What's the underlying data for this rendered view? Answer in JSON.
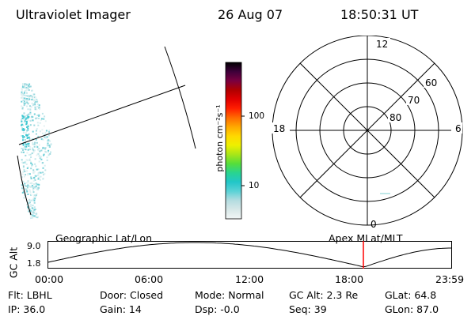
{
  "header": {
    "instrument": "Ultraviolet Imager",
    "date": "26 Aug 07",
    "time": "18:50:31 UT"
  },
  "colorbar": {
    "unit_label": "photon cm⁻²s⁻¹",
    "ticks": [
      "100",
      "10"
    ],
    "stops": [
      "#f2f6f6",
      "#d8e8e8",
      "#b4dce0",
      "#5ad2d6",
      "#22c6c8",
      "#28d490",
      "#56de3a",
      "#a8e618",
      "#eef000",
      "#ffd800",
      "#ffa800",
      "#ff6a00",
      "#ff1e00",
      "#e00000",
      "#b00000",
      "#7a0040",
      "#3e003a",
      "#000000"
    ]
  },
  "polar": {
    "clock_labels": {
      "top": "12",
      "left": "18",
      "right": "6",
      "bottom": "0"
    },
    "lat_labels": [
      "60",
      "70",
      "80"
    ]
  },
  "timeline": {
    "left_label": "Geographic Lat/Lon",
    "right_label": "Apex MLat/MLT",
    "axis_label": "GC Alt",
    "y_ticks": [
      "9.0",
      "1.8"
    ],
    "x_ticks": [
      "00:00",
      "06:00",
      "12:00",
      "18:00",
      "23:59"
    ]
  },
  "status": {
    "flt": "Flt: LBHL",
    "ip": "IP: 36.0",
    "door": "Door: Closed",
    "gain": "Gain: 14",
    "mode": "Mode: Normal",
    "dsp": "Dsp: -0.0",
    "gc_alt": "GC Alt: 2.3 Re",
    "seq": "Seq: 39",
    "glat": "GLat: 64.8",
    "glon": "GLon: 87.0"
  },
  "colors": {
    "marker": "#ff0000",
    "ink": "#000000"
  }
}
